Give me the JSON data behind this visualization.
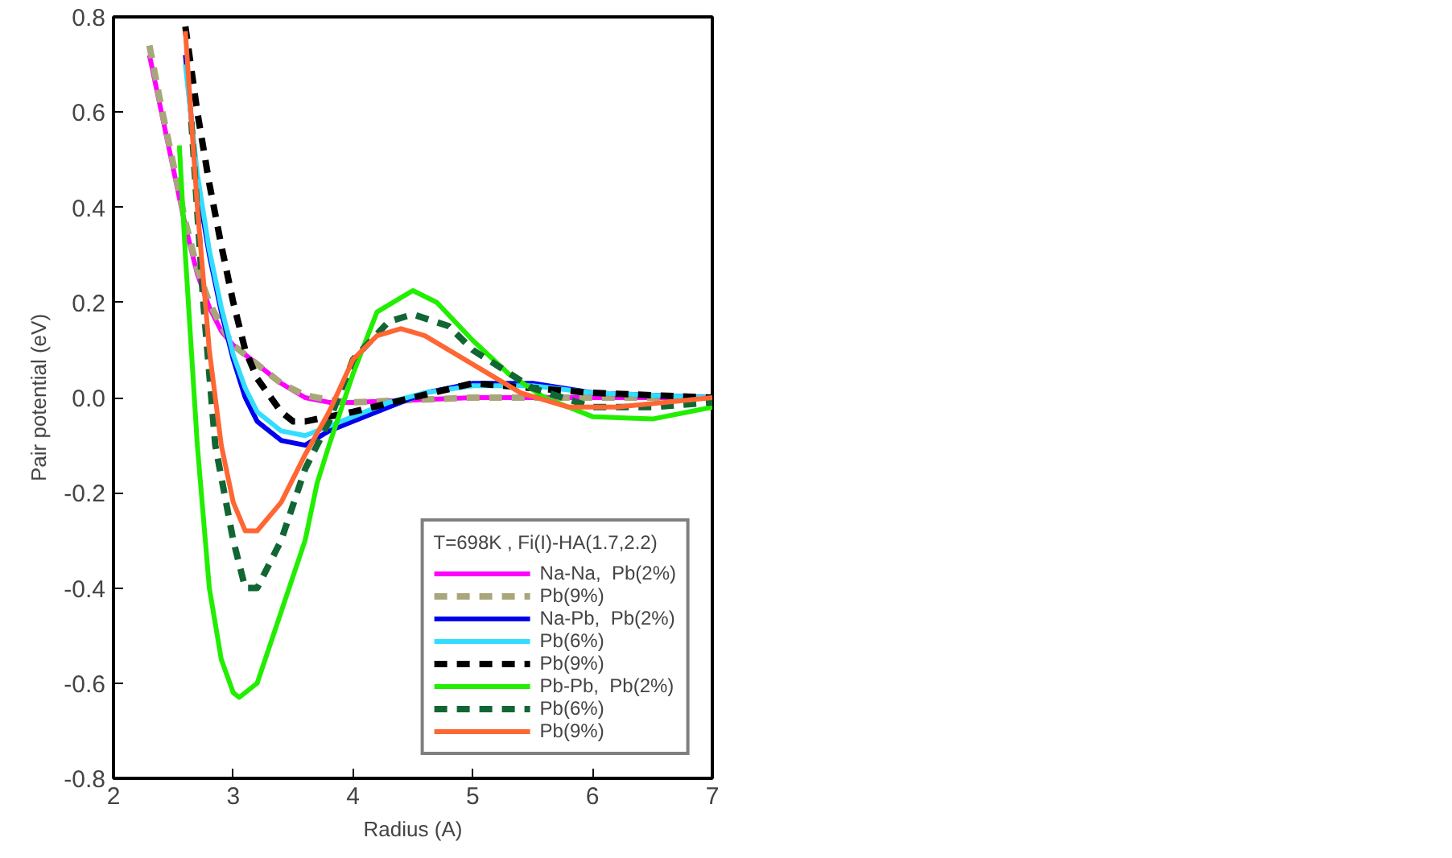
{
  "chart_data": {
    "type": "line",
    "xlabel": "Radius (A)",
    "ylabel": "Pair potential (eV)",
    "legend_title": "T=698K , Fi(I)-HA(1.7,2.2)",
    "legend": "bottom right",
    "grid": false,
    "xlim": [
      2,
      7
    ],
    "xticks": [
      2,
      3,
      4,
      5,
      6,
      7
    ],
    "ylim": [
      -0.8,
      0.8
    ],
    "yticks": [
      {
        "value": -0.8,
        "label": "-0.8"
      },
      {
        "value": -0.6,
        "label": "-0.6"
      },
      {
        "value": -0.4,
        "label": "-0.4"
      },
      {
        "value": -0.2,
        "label": "-0.2"
      },
      {
        "value": 0,
        "label": "0.0"
      },
      {
        "value": 0.2,
        "label": "0.2"
      },
      {
        "value": 0.4,
        "label": "0.4"
      },
      {
        "value": 0.6,
        "label": "0.6"
      },
      {
        "value": 0.8,
        "label": "0.8"
      }
    ],
    "series": [
      {
        "name": "Na-Na,  Pb(2%)",
        "color": "#ff00ff",
        "line_style": "solid",
        "x": [
          2.3,
          2.4,
          2.5,
          2.6,
          2.7,
          2.8,
          2.9,
          3.0,
          3.2,
          3.4,
          3.6,
          3.8,
          4.0,
          4.5,
          5.0,
          5.5,
          6.0,
          6.5,
          7.0
        ],
        "values": [
          0.72,
          0.6,
          0.48,
          0.36,
          0.26,
          0.19,
          0.14,
          0.11,
          0.07,
          0.03,
          0.0,
          -0.01,
          -0.01,
          -0.005,
          0.0,
          0.0,
          0.0,
          0.0,
          0.0
        ]
      },
      {
        "name": "Pb(9%)",
        "color": "#a8a67a",
        "line_style": "dashed",
        "x": [
          2.3,
          2.4,
          2.5,
          2.6,
          2.7,
          2.8,
          2.9,
          3.0,
          3.2,
          3.4,
          3.6,
          3.8,
          4.0,
          4.5,
          5.0,
          5.5,
          6.0,
          6.5,
          7.0
        ],
        "values": [
          0.74,
          0.61,
          0.49,
          0.37,
          0.27,
          0.2,
          0.15,
          0.11,
          0.07,
          0.03,
          0.005,
          -0.005,
          -0.01,
          -0.005,
          0.0,
          0.0,
          0.0,
          0.0,
          0.0
        ]
      },
      {
        "name": "Na-Pb,  Pb(2%)",
        "color": "#0000ee",
        "line_style": "solid",
        "x": [
          2.6,
          2.7,
          2.8,
          2.9,
          3.0,
          3.1,
          3.2,
          3.4,
          3.6,
          3.8,
          4.0,
          4.3,
          4.6,
          5.0,
          5.5,
          6.0,
          6.5,
          7.0
        ],
        "values": [
          0.72,
          0.45,
          0.3,
          0.18,
          0.08,
          0.0,
          -0.05,
          -0.09,
          -0.1,
          -0.07,
          -0.05,
          -0.02,
          0.01,
          0.03,
          0.03,
          0.01,
          0.005,
          0.0
        ]
      },
      {
        "name": "Pb(6%)",
        "color": "#33ddff",
        "line_style": "solid",
        "x": [
          2.6,
          2.7,
          2.8,
          2.9,
          3.0,
          3.1,
          3.2,
          3.4,
          3.6,
          3.8,
          4.0,
          4.3,
          4.6,
          5.0,
          5.5,
          6.0,
          6.5,
          7.0
        ],
        "values": [
          0.7,
          0.47,
          0.31,
          0.19,
          0.09,
          0.02,
          -0.03,
          -0.07,
          -0.08,
          -0.06,
          -0.04,
          -0.01,
          0.01,
          0.025,
          0.025,
          0.01,
          0.005,
          0.0
        ]
      },
      {
        "name": "Pb(9%)",
        "color": "#000000",
        "line_style": "dashed",
        "x": [
          2.6,
          2.7,
          2.8,
          2.9,
          3.0,
          3.1,
          3.2,
          3.4,
          3.5,
          3.6,
          3.8,
          4.0,
          4.5,
          5.0,
          5.5,
          6.0,
          7.0
        ],
        "values": [
          0.78,
          0.6,
          0.45,
          0.32,
          0.2,
          0.1,
          0.04,
          -0.03,
          -0.05,
          -0.05,
          -0.04,
          -0.03,
          0.0,
          0.03,
          0.02,
          0.01,
          0.0
        ]
      },
      {
        "name": "Pb-Pb,  Pb(2%)",
        "color": "#22ee00",
        "line_style": "solid",
        "x": [
          2.55,
          2.6,
          2.7,
          2.8,
          2.9,
          3.0,
          3.05,
          3.2,
          3.4,
          3.6,
          3.7,
          3.8,
          4.0,
          4.2,
          4.5,
          4.7,
          5.0,
          5.3,
          5.6,
          6.0,
          6.5,
          7.0
        ],
        "values": [
          0.53,
          0.3,
          -0.1,
          -0.4,
          -0.55,
          -0.62,
          -0.63,
          -0.6,
          -0.45,
          -0.3,
          -0.18,
          -0.1,
          0.05,
          0.18,
          0.225,
          0.2,
          0.12,
          0.05,
          0.0,
          -0.04,
          -0.045,
          -0.02
        ]
      },
      {
        "name": "Pb(6%)",
        "color": "#116633",
        "line_style": "dashed",
        "x": [
          2.65,
          2.75,
          2.85,
          3.0,
          3.1,
          3.2,
          3.4,
          3.6,
          3.8,
          4.0,
          4.3,
          4.5,
          4.8,
          5.0,
          5.5,
          6.0,
          6.5,
          7.0
        ],
        "values": [
          0.58,
          0.2,
          -0.1,
          -0.3,
          -0.4,
          -0.4,
          -0.3,
          -0.15,
          -0.05,
          0.08,
          0.16,
          0.175,
          0.15,
          0.1,
          0.02,
          -0.02,
          -0.02,
          -0.01
        ]
      },
      {
        "name": "Pb(9%)",
        "color": "#ff6633",
        "line_style": "solid",
        "x": [
          2.6,
          2.7,
          2.8,
          2.9,
          3.0,
          3.1,
          3.2,
          3.4,
          3.6,
          3.8,
          4.0,
          4.2,
          4.4,
          4.6,
          5.0,
          5.4,
          5.8,
          6.2,
          6.6,
          7.0
        ],
        "values": [
          0.77,
          0.4,
          0.1,
          -0.1,
          -0.22,
          -0.28,
          -0.28,
          -0.22,
          -0.12,
          -0.03,
          0.08,
          0.13,
          0.145,
          0.13,
          0.07,
          0.01,
          -0.02,
          -0.02,
          -0.01,
          0.0
        ]
      }
    ]
  }
}
